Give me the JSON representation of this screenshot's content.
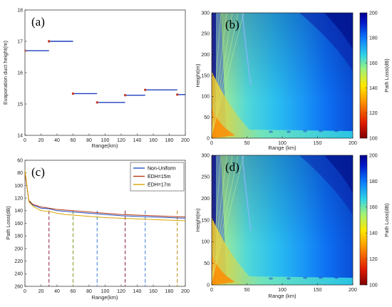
{
  "chart_data": [
    {
      "panel": "(a)",
      "type": "line",
      "xlabel": "Range(km)",
      "ylabel": "Evaporation duct height(m)",
      "xlim": [
        0,
        200
      ],
      "ylim": [
        14,
        18
      ],
      "xticks": [
        "0",
        "20",
        "40",
        "60",
        "80",
        "100",
        "120",
        "140",
        "160",
        "180",
        "200"
      ],
      "yticks": [
        "14",
        "15",
        "16",
        "17",
        "18"
      ],
      "color": "#1f3fbf",
      "marker_color": "#c0392b",
      "segments": [
        {
          "x0": 0,
          "x1": 30,
          "y": 16.7
        },
        {
          "x0": 30,
          "x1": 60,
          "y": 17.0
        },
        {
          "x0": 60,
          "x1": 90,
          "y": 15.33
        },
        {
          "x0": 90,
          "x1": 125,
          "y": 15.05
        },
        {
          "x0": 125,
          "x1": 150,
          "y": 15.28
        },
        {
          "x0": 150,
          "x1": 190,
          "y": 15.45
        },
        {
          "x0": 190,
          "x1": 200,
          "y": 15.3
        }
      ]
    },
    {
      "panel": "(b)",
      "type": "heatmap",
      "xlabel": "Range (km)",
      "ylabel": "Height(m)",
      "xlim": [
        0,
        200
      ],
      "ylim": [
        0,
        300
      ],
      "xticks": [
        "0",
        "50",
        "100",
        "150",
        "200"
      ],
      "yticks": [
        "0",
        "50",
        "100",
        "150",
        "200",
        "250",
        "300"
      ],
      "colorbar_label": "Path Loss(dB)",
      "colorbar_ticks": [
        "100",
        "120",
        "140",
        "160",
        "180",
        "200"
      ],
      "colorbar_range": [
        100,
        200
      ]
    },
    {
      "panel": "(c)",
      "type": "line",
      "xlabel": "Range(km)",
      "ylabel": "Path Loss(dB)",
      "xlim": [
        0,
        200
      ],
      "ylim": [
        60,
        260
      ],
      "y_reversed": true,
      "xticks": [
        "0",
        "20",
        "40",
        "60",
        "80",
        "100",
        "120",
        "140",
        "160",
        "180",
        "200"
      ],
      "yticks": [
        "60",
        "80",
        "100",
        "120",
        "140",
        "160",
        "180",
        "200",
        "220",
        "240",
        "260"
      ],
      "legend_position": "top-right",
      "series": [
        {
          "name": "Non-Uniform",
          "color": "#2452c4",
          "x": [
            0,
            5,
            10,
            20,
            30,
            40,
            50,
            60,
            70,
            80,
            90,
            100,
            120,
            140,
            160,
            180,
            200
          ],
          "y": [
            80,
            125,
            131,
            136,
            137,
            140,
            141,
            142,
            143,
            144,
            145,
            146,
            148,
            149,
            150,
            151,
            152
          ]
        },
        {
          "name": "EDH=15m",
          "color": "#b23a1a",
          "x": [
            0,
            5,
            10,
            20,
            30,
            40,
            50,
            60,
            70,
            80,
            90,
            100,
            120,
            140,
            160,
            180,
            200
          ],
          "y": [
            80,
            124,
            130,
            134,
            136,
            138,
            139,
            140,
            141,
            142,
            143,
            144,
            146,
            147,
            148,
            149,
            150
          ]
        },
        {
          "name": "EDH=17m",
          "color": "#d9a400",
          "x": [
            0,
            5,
            10,
            20,
            30,
            40,
            50,
            60,
            70,
            80,
            90,
            100,
            120,
            140,
            160,
            180,
            200
          ],
          "y": [
            75,
            126,
            133,
            140,
            141,
            144,
            146,
            147,
            148,
            149,
            150,
            151,
            152,
            153,
            154,
            155,
            156
          ]
        }
      ],
      "vlines": [
        {
          "x": 30,
          "color": "#8b1a3a"
        },
        {
          "x": 60,
          "color": "#7a9a20"
        },
        {
          "x": 90,
          "color": "#3a7fd9"
        },
        {
          "x": 125,
          "color": "#8b1a3a"
        },
        {
          "x": 150,
          "color": "#3a7fd9"
        },
        {
          "x": 190,
          "color": "#b8860b"
        }
      ]
    },
    {
      "panel": "(d)",
      "type": "heatmap",
      "xlabel": "Range (km)",
      "ylabel": "Height(m)",
      "xlim": [
        0,
        200
      ],
      "ylim": [
        0,
        300
      ],
      "xticks": [
        "0",
        "50",
        "100",
        "150",
        "200"
      ],
      "yticks": [
        "0",
        "50",
        "100",
        "150",
        "200",
        "250",
        "300"
      ],
      "colorbar_label": "Path Loss(dB)",
      "colorbar_ticks": [
        "100",
        "120",
        "140",
        "160",
        "180",
        "200"
      ],
      "colorbar_range": [
        100,
        200
      ]
    }
  ]
}
